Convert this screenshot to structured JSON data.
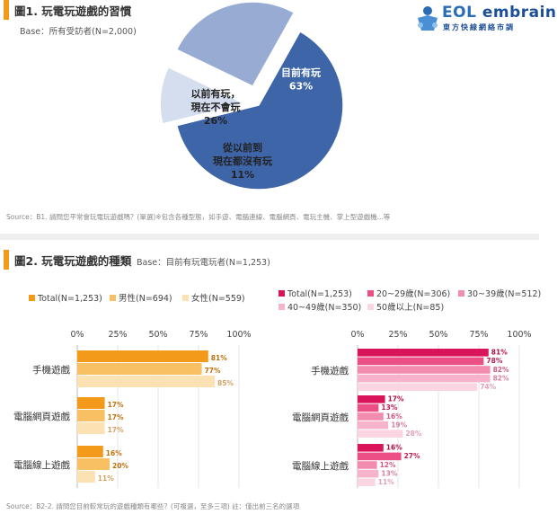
{
  "logo": {
    "brand_prefix": "EOL",
    "brand_main": "embrain",
    "tagline": "東方快線網絡市調"
  },
  "fig1": {
    "title": "圖1. 玩電玩遊戲的習慣",
    "base": "Base：所有受訪者(N=2,000)",
    "source": "Source：B1. 請問您平常會玩電玩遊戲嗎？(單選)※包含各種型態，如手遊、電腦連線、電腦網頁、電玩主機、掌上型遊戲機...等"
  },
  "fig2": {
    "title": "圖2. 玩電玩遊戲的種類",
    "base": "Base：目前有玩電玩者(N=1,253)",
    "source": "Source：B2-2. 請問您目前較常玩的遊戲種類有哪些？(可複選，至多三項) 註：僅出前三名的選項"
  },
  "chart_data": [
    {
      "type": "pie",
      "slices": [
        {
          "label_lines": [
            "目前有玩"
          ],
          "value": 63,
          "value_label": "63%",
          "color": "#3d65a8",
          "text_color": "#ffffff"
        },
        {
          "label_lines": [
            "從以前到",
            "現在都沒有玩"
          ],
          "value": 11,
          "value_label": "11%",
          "color": "#d5deef",
          "text_color": "#222222"
        },
        {
          "label_lines": [
            "以前有玩，",
            "現在不會玩"
          ],
          "value": 26,
          "value_label": "26%",
          "color": "#97abd3",
          "text_color": "#222222"
        }
      ]
    },
    {
      "type": "bar",
      "orientation": "horizontal",
      "categories": [
        "手機遊戲",
        "電腦網頁遊戲",
        "電腦線上遊戲"
      ],
      "xlim": [
        0,
        100
      ],
      "ticks": [
        "0%",
        "25%",
        "50%",
        "75%",
        "100%"
      ],
      "series": [
        {
          "name": "Total(N=1,253)",
          "values": [
            81,
            17,
            16
          ],
          "color": "#f39a1b",
          "label_color": "#c0700a"
        },
        {
          "name": "男性(N=694)",
          "values": [
            77,
            17,
            20
          ],
          "color": "#f8c062",
          "label_color": "#c0700a"
        },
        {
          "name": "女性(N=559)",
          "values": [
            85,
            17,
            11
          ],
          "color": "#fce1b3",
          "label_color": "#d4a060"
        }
      ]
    },
    {
      "type": "bar",
      "orientation": "horizontal",
      "categories": [
        "手機遊戲",
        "電腦網頁遊戲",
        "電腦線上遊戲"
      ],
      "xlim": [
        0,
        100
      ],
      "ticks": [
        "0%",
        "25%",
        "50%",
        "75%",
        "100%"
      ],
      "series": [
        {
          "name": "Total(N=1,253)",
          "values": [
            81,
            17,
            16
          ],
          "color": "#d9145a",
          "label_color": "#b00f48"
        },
        {
          "name": "20~29歲(N=306)",
          "values": [
            78,
            13,
            27
          ],
          "color": "#ec4f85",
          "label_color": "#c01a55"
        },
        {
          "name": "30~39歲(N=512)",
          "values": [
            82,
            16,
            12
          ],
          "color": "#f38db0",
          "label_color": "#d05a85"
        },
        {
          "name": "40~49歲(N=350)",
          "values": [
            82,
            19,
            13
          ],
          "color": "#f7b3cb",
          "label_color": "#d77fa0"
        },
        {
          "name": "50歲以上(N=85)",
          "values": [
            74,
            28,
            11
          ],
          "color": "#fbd6e2",
          "label_color": "#e0a0b8"
        }
      ]
    }
  ]
}
